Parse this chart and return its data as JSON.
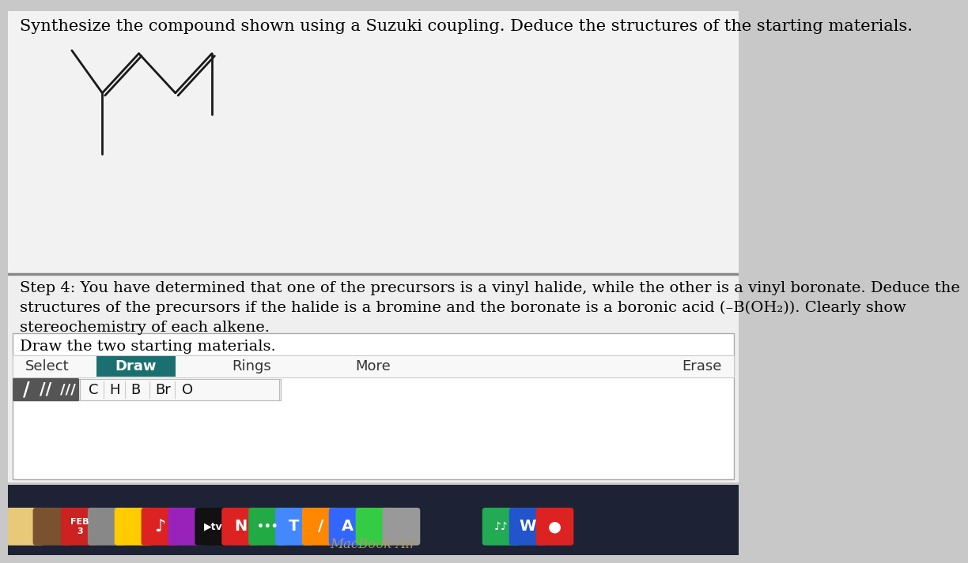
{
  "bg_color": "#c8c8c8",
  "content_bg": "#f0f0f0",
  "title_text": "Synthesize the compound shown using a Suzuki coupling. Deduce the structures of the starting materials.",
  "step4_line1": "Step 4: You have determined that one of the precursors is a vinyl halide, while the other is a vinyl boronate. Deduce the",
  "step4_line2": "structures of the precursors if the halide is a bromine and the boronate is a boronic acid (–B(OH₂)). Clearly show",
  "step4_line3": "stereochemistry of each alkene.",
  "draw_label": "Draw the two starting materials.",
  "toolbar_items": [
    "Select",
    "Draw",
    "Rings",
    "More",
    "Erase"
  ],
  "draw_btn_color": "#1a7070",
  "element_items": [
    "C",
    "H",
    "B",
    "Br",
    "O"
  ],
  "molecule_color": "#1a1a1a",
  "dock_bg": "#1e2235",
  "macbook_text": "MacBook Air",
  "title_fontsize": 15,
  "step4_fontsize": 14,
  "draw_label_fontsize": 14,
  "toolbar_fontsize": 13,
  "elem_fontsize": 13
}
